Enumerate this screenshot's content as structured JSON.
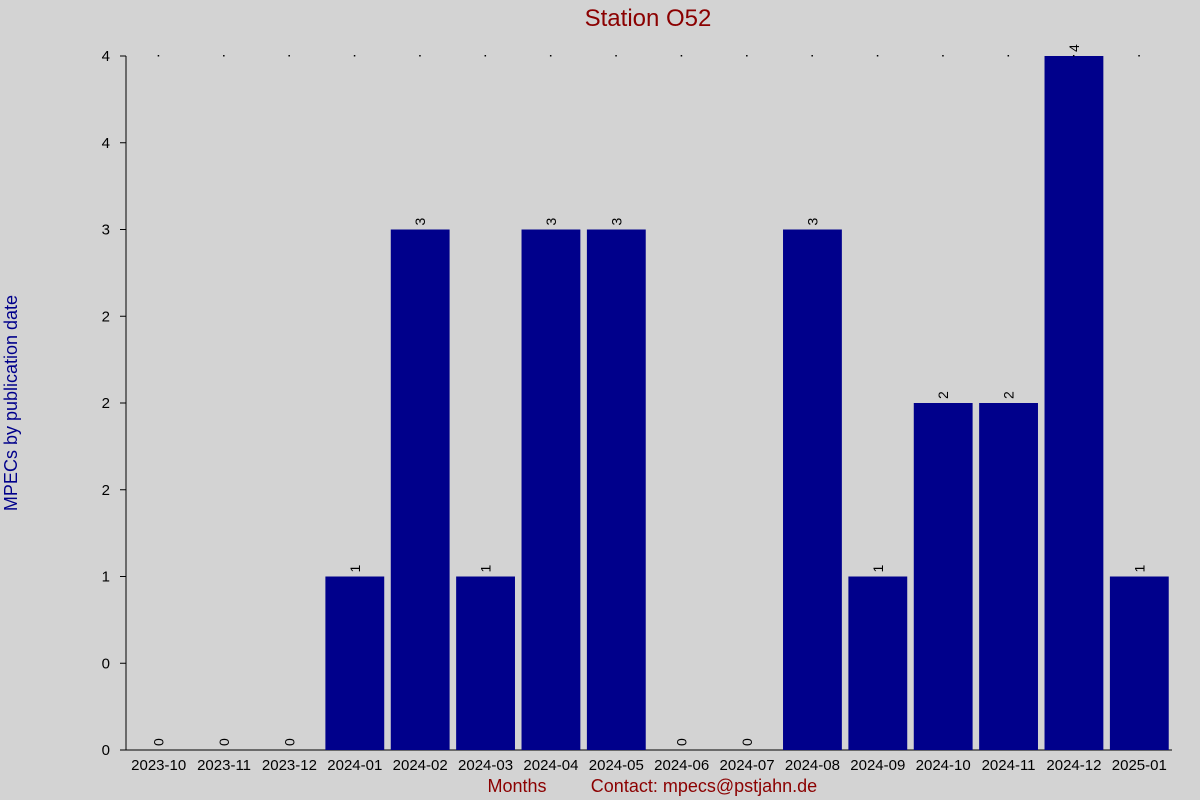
{
  "colors": {
    "background": "#d3d3d3",
    "bar": "#00008b",
    "title": "#8b0000",
    "ylabel": "#00008b",
    "xlabel": "#8b0000"
  },
  "footer": {
    "contact": "Contact: mpecs@pstjahn.de"
  },
  "chart_data": {
    "type": "bar",
    "title": "Station O52",
    "xlabel": "Months",
    "ylabel": "MPECs by publication date",
    "categories": [
      "2023-10",
      "2023-11",
      "2023-12",
      "2024-01",
      "2024-02",
      "2024-03",
      "2024-04",
      "2024-05",
      "2024-06",
      "2024-07",
      "2024-08",
      "2024-09",
      "2024-10",
      "2024-11",
      "2024-12",
      "2025-01"
    ],
    "values": [
      0,
      0,
      0,
      1,
      3,
      1,
      3,
      3,
      0,
      0,
      3,
      1,
      2,
      2,
      4,
      1
    ],
    "ylim": [
      0,
      4
    ],
    "ytick_labels": [
      "0",
      "0",
      "1",
      "2",
      "2",
      "2",
      "3",
      "4",
      "4"
    ],
    "grid": false
  }
}
